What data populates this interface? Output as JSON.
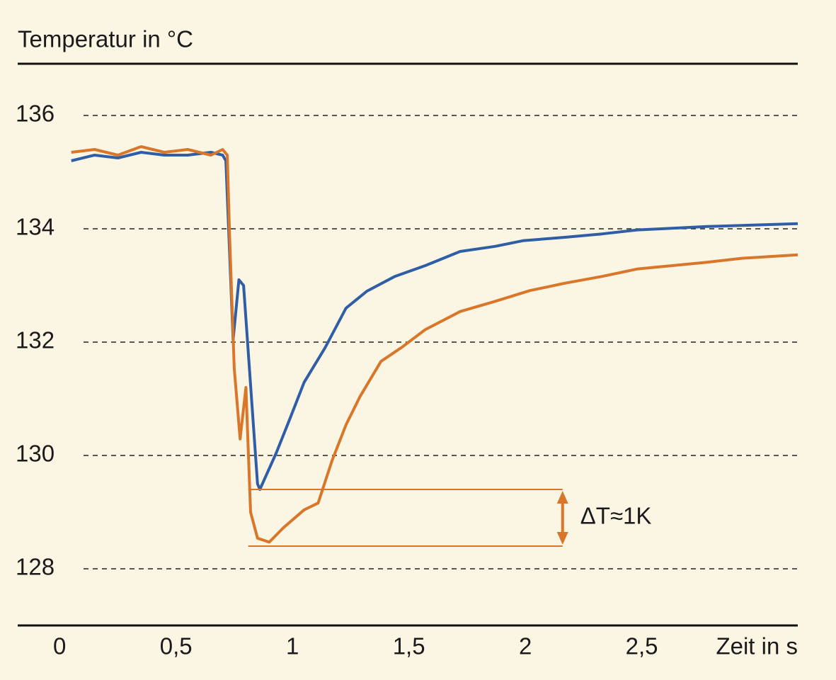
{
  "chart_data": {
    "type": "line",
    "title": "Temperatur in °C",
    "x_label": "Zeit in s",
    "xlim": [
      -0.18,
      3.17
    ],
    "ylim": [
      127,
      137
    ],
    "xticks": [
      0,
      {
        "value": 0.5,
        "label": "0,5"
      },
      1,
      {
        "value": 1.5,
        "label": "1,5"
      },
      2,
      {
        "value": 2.5,
        "label": "2,5"
      }
    ],
    "yticks": [
      128,
      130,
      132,
      134,
      136
    ],
    "grid": true,
    "series": [
      {
        "color": "#2f5ea6",
        "x": [
          0.05,
          0.15,
          0.25,
          0.35,
          0.45,
          0.55,
          0.65,
          0.7,
          0.714,
          0.745,
          0.77,
          0.79,
          0.85,
          0.86,
          0.93,
          0.99,
          1.05,
          1.14,
          1.23,
          1.32,
          1.44,
          1.57,
          1.72,
          1.87,
          1.99,
          2.17,
          2.33,
          2.48,
          2.63,
          2.78,
          2.93,
          3.17
        ],
        "values": [
          135.2,
          135.3,
          135.25,
          135.35,
          135.3,
          135.3,
          135.35,
          135.3,
          135.2,
          132.04,
          133.1,
          133.0,
          129.5,
          129.4,
          130.04,
          130.66,
          131.29,
          131.9,
          132.6,
          132.9,
          133.16,
          133.35,
          133.6,
          133.69,
          133.79,
          133.85,
          133.91,
          133.98,
          134.01,
          134.04,
          134.06,
          134.09
        ]
      },
      {
        "color": "#d9762a",
        "x": [
          0.05,
          0.15,
          0.25,
          0.35,
          0.45,
          0.55,
          0.65,
          0.7,
          0.72,
          0.73,
          0.75,
          0.775,
          0.8,
          0.82,
          0.85,
          0.9,
          0.96,
          1.05,
          1.11,
          1.17,
          1.23,
          1.29,
          1.38,
          1.47,
          1.57,
          1.72,
          1.87,
          2.02,
          2.17,
          2.33,
          2.48,
          2.63,
          2.78,
          2.93,
          3.17
        ],
        "values": [
          135.35,
          135.4,
          135.3,
          135.45,
          135.35,
          135.4,
          135.3,
          135.4,
          135.3,
          133.9,
          131.54,
          130.29,
          131.2,
          129.0,
          128.54,
          128.47,
          128.72,
          129.04,
          129.16,
          129.91,
          130.54,
          131.04,
          131.66,
          131.91,
          132.22,
          132.54,
          132.72,
          132.91,
          133.04,
          133.16,
          133.29,
          133.35,
          133.41,
          133.48,
          133.54
        ]
      }
    ],
    "annotation": {
      "text": "ΔT≈1K",
      "color": "#d9762a",
      "y": [
        128.4,
        129.4
      ],
      "x": [
        0.81,
        2.16
      ]
    }
  }
}
